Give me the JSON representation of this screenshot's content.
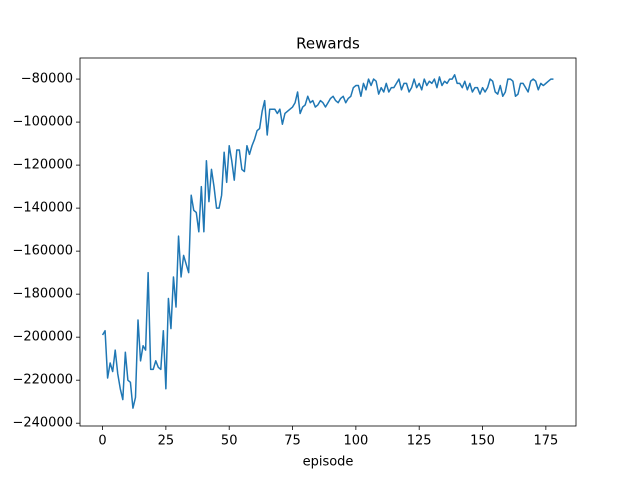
{
  "chart_data": {
    "type": "line",
    "title": "Rewards",
    "xlabel": "episode",
    "color": "#1f77b4",
    "xlim": [
      -8.9,
      186.9
    ],
    "ylim": [
      -241300,
      -70200
    ],
    "xticks": [
      0,
      25,
      50,
      75,
      100,
      125,
      150,
      175
    ],
    "yticks": [
      {
        "value": -80000,
        "label": "−80000"
      },
      {
        "value": -100000,
        "label": "−100000"
      },
      {
        "value": -120000,
        "label": "−120000"
      },
      {
        "value": -140000,
        "label": "−140000"
      },
      {
        "value": -160000,
        "label": "−160000"
      },
      {
        "value": -180000,
        "label": "−180000"
      },
      {
        "value": -200000,
        "label": "−200000"
      },
      {
        "value": -220000,
        "label": "−220000"
      },
      {
        "value": -240000,
        "label": "−240000"
      }
    ],
    "x": [
      0,
      1,
      2,
      3,
      4,
      5,
      6,
      7,
      8,
      9,
      10,
      11,
      12,
      13,
      14,
      15,
      16,
      17,
      18,
      19,
      20,
      21,
      22,
      23,
      24,
      25,
      26,
      27,
      28,
      29,
      30,
      31,
      32,
      33,
      34,
      35,
      36,
      37,
      38,
      39,
      40,
      41,
      42,
      43,
      44,
      45,
      46,
      47,
      48,
      49,
      50,
      51,
      52,
      53,
      54,
      55,
      56,
      57,
      58,
      59,
      60,
      61,
      62,
      63,
      64,
      65,
      66,
      67,
      68,
      69,
      70,
      71,
      72,
      73,
      74,
      75,
      76,
      77,
      78,
      79,
      80,
      81,
      82,
      83,
      84,
      85,
      86,
      87,
      88,
      89,
      90,
      91,
      92,
      93,
      94,
      95,
      96,
      97,
      98,
      99,
      100,
      101,
      102,
      103,
      104,
      105,
      106,
      107,
      108,
      109,
      110,
      111,
      112,
      113,
      114,
      115,
      116,
      117,
      118,
      119,
      120,
      121,
      122,
      123,
      124,
      125,
      126,
      127,
      128,
      129,
      130,
      131,
      132,
      133,
      134,
      135,
      136,
      137,
      138,
      139,
      140,
      141,
      142,
      143,
      144,
      145,
      146,
      147,
      148,
      149,
      150,
      151,
      152,
      153,
      154,
      155,
      156,
      157,
      158,
      159,
      160,
      161,
      162,
      163,
      164,
      165,
      166,
      167,
      168,
      169,
      170,
      171,
      172,
      173,
      174,
      175,
      176,
      177,
      178
    ],
    "values": [
      -199000,
      -197000,
      -219000,
      -212000,
      -216000,
      -206000,
      -217000,
      -224000,
      -229000,
      -207000,
      -220000,
      -221000,
      -233000,
      -228000,
      -192000,
      -211000,
      -204000,
      -206000,
      -170000,
      -215000,
      -215000,
      -211000,
      -214000,
      -215000,
      -197000,
      -224000,
      -182000,
      -196000,
      -172000,
      -186000,
      -153000,
      -172000,
      -162000,
      -166000,
      -170000,
      -134000,
      -141000,
      -142000,
      -151000,
      -130000,
      -151000,
      -118000,
      -137000,
      -122000,
      -130000,
      -140000,
      -140000,
      -134000,
      -114000,
      -128000,
      -111000,
      -118000,
      -127000,
      -113000,
      -113000,
      -122000,
      -123000,
      -111000,
      -115000,
      -111000,
      -108000,
      -104000,
      -103000,
      -95000,
      -90000,
      -106000,
      -94000,
      -94000,
      -94000,
      -96000,
      -94000,
      -101000,
      -96000,
      -95000,
      -94000,
      -93000,
      -91000,
      -86000,
      -96000,
      -93000,
      -92000,
      -88000,
      -91000,
      -90000,
      -93000,
      -92000,
      -90000,
      -91000,
      -93000,
      -91000,
      -89000,
      -88000,
      -90000,
      -91000,
      -89000,
      -88000,
      -91000,
      -89000,
      -88000,
      -84000,
      -83000,
      -83000,
      -88000,
      -82000,
      -85000,
      -80000,
      -83000,
      -80000,
      -81000,
      -87000,
      -84000,
      -86000,
      -82000,
      -86000,
      -84000,
      -84000,
      -82000,
      -80000,
      -85000,
      -82000,
      -82000,
      -86000,
      -84000,
      -80000,
      -84000,
      -82000,
      -85000,
      -80000,
      -83000,
      -81000,
      -82000,
      -80000,
      -84000,
      -79000,
      -83000,
      -81000,
      -82000,
      -80000,
      -80000,
      -78000,
      -82000,
      -82000,
      -84000,
      -81000,
      -85000,
      -82000,
      -86000,
      -84000,
      -84000,
      -87000,
      -84000,
      -86000,
      -84000,
      -80000,
      -81000,
      -86000,
      -87000,
      -83000,
      -88000,
      -86000,
      -80000,
      -80000,
      -81000,
      -88000,
      -87000,
      -82000,
      -82000,
      -84000,
      -86000,
      -81000,
      -80000,
      -81000,
      -85000,
      -82000,
      -83000,
      -82000,
      -81000,
      -80000,
      -80000
    ]
  }
}
